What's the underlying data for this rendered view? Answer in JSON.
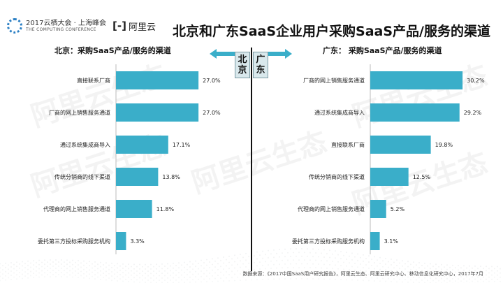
{
  "header": {
    "conference_name": "2017云栖大会 · 上海峰会",
    "conference_name_en": "THE COMPUTING CONFERENCE",
    "aliyun_logo_text": "阿里云",
    "title": "北京和广东SaaS企业用户采购SaaS产品/服务的渠道"
  },
  "left_panel": {
    "title": "北京：采购SaaS产品/服务的渠道",
    "side_label": [
      "北",
      "京"
    ]
  },
  "right_panel": {
    "title": "广东： 采购SaaS产品/服务的渠道",
    "side_label": [
      "广",
      "东"
    ]
  },
  "watermark": "阿里云生态",
  "source_note": "数据来源：《2017中国SaaS用户研究报告》，阿里云生态、阿里云研究中心、移动信息化研究中心，2017年7月",
  "colors": {
    "bar": "#3aaec9",
    "text": "#222222",
    "axis": "#bbbbbb"
  },
  "chart_data": [
    {
      "type": "bar",
      "orientation": "horizontal",
      "title": "北京：采购SaaS产品/服务的渠道",
      "categories": [
        "直接联系厂商",
        "厂商的网上销售服务通道",
        "通过系统集成商导入",
        "传统分销商的线下渠道",
        "代理商的网上销售服务通道",
        "委托第三方投标采购服务机构"
      ],
      "values": [
        27.0,
        27.0,
        17.1,
        13.8,
        11.8,
        3.3
      ],
      "value_labels": [
        "27.0%",
        "27.0%",
        "17.1%",
        "13.8%",
        "11.8%",
        "3.3%"
      ],
      "xlim": [
        0,
        32
      ]
    },
    {
      "type": "bar",
      "orientation": "horizontal",
      "title": "广东： 采购SaaS产品/服务的渠道",
      "categories": [
        "厂商的网上销售服务通道",
        "通过系统集成商导入",
        "直接联系厂商",
        "传统分销商的线下渠道",
        "代理商的网上销售服务通道",
        "委托第三方投标采购服务机构"
      ],
      "values": [
        30.2,
        29.2,
        19.8,
        12.5,
        5.2,
        3.1
      ],
      "value_labels": [
        "30.2%",
        "29.2%",
        "19.8%",
        "12.5%",
        "5.2%",
        "3.1%"
      ],
      "xlim": [
        0,
        32
      ]
    }
  ]
}
